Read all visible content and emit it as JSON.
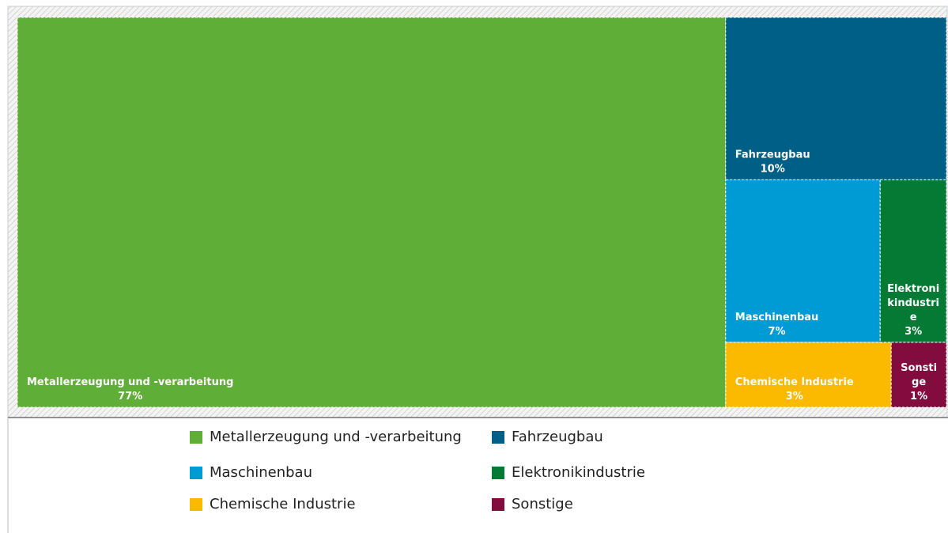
{
  "chart_data": {
    "type": "treemap",
    "categories": [
      "Metallerzeugung und -verarbeitung",
      "Fahrzeugbau",
      "Maschinenbau",
      "Elektronikindustrie",
      "Chemische Industrie",
      "Sonstige"
    ],
    "values": [
      77,
      10,
      7,
      3,
      3,
      1
    ],
    "value_labels": [
      "77%",
      "10%",
      "7%",
      "3%",
      "3%",
      "1%"
    ],
    "colors": [
      "#5fae37",
      "#005f87",
      "#009bd4",
      "#057a34",
      "#fbb900",
      "#820c3e"
    ],
    "legend": "bottom"
  }
}
